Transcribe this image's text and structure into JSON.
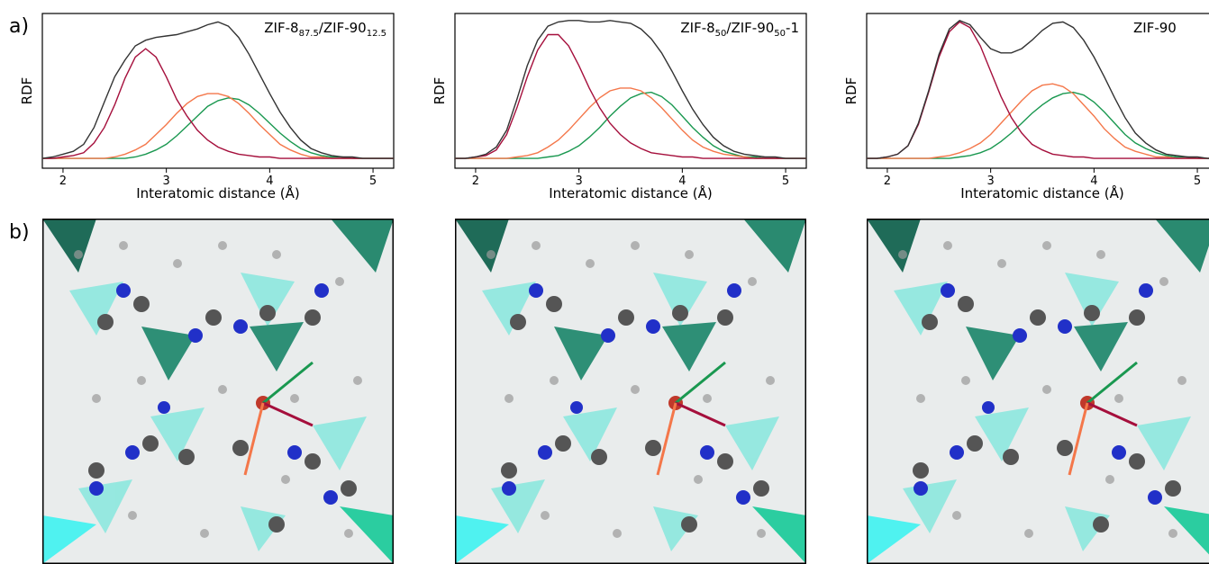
{
  "panel_labels": [
    "a)",
    "b)"
  ],
  "chart_data": [
    {
      "type": "line",
      "title": [
        "ZIF-8",
        "87.5",
        "/ZIF-90",
        "12.5"
      ],
      "x_label": "Interatomic distance (Å)",
      "y_label": "RDF",
      "xlim": [
        1.8,
        5.2
      ],
      "xticks": [
        2,
        3,
        4,
        5
      ],
      "ylim": [
        -0.07,
        1.03
      ],
      "x": [
        1.8,
        1.9,
        2.0,
        2.1,
        2.2,
        2.3,
        2.4,
        2.5,
        2.6,
        2.7,
        2.8,
        2.9,
        3.0,
        3.1,
        3.2,
        3.3,
        3.4,
        3.5,
        3.6,
        3.7,
        3.8,
        3.9,
        4.0,
        4.1,
        4.2,
        4.3,
        4.4,
        4.5,
        4.6,
        4.7,
        4.8,
        4.9,
        5.0,
        5.1,
        5.2
      ],
      "series": [
        {
          "color": "#333333",
          "values": [
            0,
            0.01,
            0.03,
            0.05,
            0.1,
            0.22,
            0.4,
            0.58,
            0.7,
            0.8,
            0.84,
            0.86,
            0.87,
            0.88,
            0.9,
            0.92,
            0.95,
            0.97,
            0.94,
            0.86,
            0.74,
            0.6,
            0.46,
            0.33,
            0.22,
            0.13,
            0.07,
            0.04,
            0.02,
            0.01,
            0.01,
            0,
            0,
            0,
            0
          ]
        },
        {
          "color": "#a50f3c",
          "values": [
            0,
            0,
            0.01,
            0.02,
            0.04,
            0.11,
            0.22,
            0.38,
            0.57,
            0.72,
            0.78,
            0.72,
            0.58,
            0.42,
            0.3,
            0.2,
            0.13,
            0.08,
            0.05,
            0.03,
            0.02,
            0.01,
            0.01,
            0,
            0,
            0,
            0,
            0,
            0,
            0,
            0,
            0,
            0,
            0,
            0
          ]
        },
        {
          "color": "#f4774a",
          "values": [
            0,
            0,
            0,
            0,
            0,
            0,
            0,
            0.01,
            0.03,
            0.06,
            0.1,
            0.17,
            0.24,
            0.32,
            0.39,
            0.44,
            0.46,
            0.46,
            0.44,
            0.39,
            0.32,
            0.24,
            0.17,
            0.1,
            0.06,
            0.03,
            0.01,
            0.01,
            0,
            0,
            0,
            0,
            0,
            0,
            0
          ]
        },
        {
          "color": "#1a9850",
          "values": [
            0,
            0,
            0,
            0,
            0,
            0,
            0,
            0,
            0,
            0.01,
            0.03,
            0.06,
            0.1,
            0.16,
            0.23,
            0.3,
            0.37,
            0.41,
            0.43,
            0.42,
            0.38,
            0.32,
            0.25,
            0.18,
            0.12,
            0.07,
            0.04,
            0.02,
            0.01,
            0.01,
            0,
            0,
            0,
            0,
            0
          ]
        }
      ]
    },
    {
      "type": "line",
      "title": [
        "ZIF-8",
        "50",
        "/ZIF-90",
        "50",
        "-1"
      ],
      "x_label": "Interatomic distance (Å)",
      "y_label": "RDF",
      "xlim": [
        1.8,
        5.2
      ],
      "xticks": [
        2,
        3,
        4,
        5
      ],
      "ylim": [
        -0.07,
        1.03
      ],
      "x": [
        1.8,
        1.9,
        2.0,
        2.1,
        2.2,
        2.3,
        2.4,
        2.5,
        2.6,
        2.7,
        2.8,
        2.9,
        3.0,
        3.1,
        3.2,
        3.3,
        3.4,
        3.5,
        3.6,
        3.7,
        3.8,
        3.9,
        4.0,
        4.1,
        4.2,
        4.3,
        4.4,
        4.5,
        4.6,
        4.7,
        4.8,
        4.9,
        5.0,
        5.1,
        5.2
      ],
      "series": [
        {
          "color": "#333333",
          "values": [
            0,
            0,
            0.01,
            0.03,
            0.08,
            0.2,
            0.42,
            0.66,
            0.84,
            0.94,
            0.97,
            0.98,
            0.98,
            0.97,
            0.97,
            0.98,
            0.97,
            0.96,
            0.92,
            0.85,
            0.75,
            0.62,
            0.48,
            0.35,
            0.24,
            0.15,
            0.09,
            0.05,
            0.03,
            0.02,
            0.01,
            0.01,
            0,
            0,
            0
          ]
        },
        {
          "color": "#a50f3c",
          "values": [
            0,
            0,
            0.01,
            0.02,
            0.06,
            0.17,
            0.36,
            0.58,
            0.77,
            0.88,
            0.88,
            0.8,
            0.66,
            0.5,
            0.36,
            0.25,
            0.17,
            0.11,
            0.07,
            0.04,
            0.03,
            0.02,
            0.01,
            0.01,
            0,
            0,
            0,
            0,
            0,
            0,
            0,
            0,
            0,
            0,
            0
          ]
        },
        {
          "color": "#f4774a",
          "values": [
            0,
            0,
            0,
            0,
            0,
            0,
            0.01,
            0.02,
            0.04,
            0.08,
            0.13,
            0.2,
            0.28,
            0.36,
            0.43,
            0.48,
            0.5,
            0.5,
            0.48,
            0.43,
            0.36,
            0.28,
            0.2,
            0.13,
            0.08,
            0.05,
            0.03,
            0.02,
            0.01,
            0,
            0,
            0,
            0,
            0,
            0
          ]
        },
        {
          "color": "#1a9850",
          "values": [
            0,
            0,
            0,
            0,
            0,
            0,
            0,
            0,
            0,
            0.01,
            0.02,
            0.05,
            0.09,
            0.15,
            0.22,
            0.3,
            0.37,
            0.43,
            0.46,
            0.47,
            0.44,
            0.38,
            0.3,
            0.22,
            0.15,
            0.09,
            0.05,
            0.03,
            0.01,
            0.01,
            0,
            0,
            0,
            0,
            0
          ]
        }
      ]
    },
    {
      "type": "line",
      "title": [
        "ZIF-90"
      ],
      "x_label": "Interatomic distance (Å)",
      "y_label": "RDF",
      "xlim": [
        1.8,
        5.2
      ],
      "xticks": [
        2,
        3,
        4,
        5
      ],
      "ylim": [
        -0.07,
        1.03
      ],
      "x": [
        1.8,
        1.9,
        2.0,
        2.1,
        2.2,
        2.3,
        2.4,
        2.5,
        2.6,
        2.7,
        2.8,
        2.9,
        3.0,
        3.1,
        3.2,
        3.3,
        3.4,
        3.5,
        3.6,
        3.7,
        3.8,
        3.9,
        4.0,
        4.1,
        4.2,
        4.3,
        4.4,
        4.5,
        4.6,
        4.7,
        4.8,
        4.9,
        5.0,
        5.1,
        5.2
      ],
      "series": [
        {
          "color": "#333333",
          "values": [
            0,
            0,
            0.01,
            0.03,
            0.09,
            0.25,
            0.48,
            0.74,
            0.92,
            0.98,
            0.95,
            0.86,
            0.78,
            0.75,
            0.75,
            0.78,
            0.84,
            0.91,
            0.96,
            0.97,
            0.93,
            0.84,
            0.72,
            0.58,
            0.43,
            0.29,
            0.18,
            0.11,
            0.06,
            0.03,
            0.02,
            0.01,
            0.01,
            0,
            0
          ]
        },
        {
          "color": "#a50f3c",
          "values": [
            0,
            0,
            0.01,
            0.03,
            0.09,
            0.24,
            0.47,
            0.72,
            0.9,
            0.97,
            0.93,
            0.8,
            0.62,
            0.44,
            0.29,
            0.18,
            0.1,
            0.06,
            0.03,
            0.02,
            0.01,
            0.01,
            0,
            0,
            0,
            0,
            0,
            0,
            0,
            0,
            0,
            0,
            0,
            0,
            0
          ]
        },
        {
          "color": "#f4774a",
          "values": [
            0,
            0,
            0,
            0,
            0,
            0,
            0,
            0.01,
            0.02,
            0.04,
            0.07,
            0.11,
            0.17,
            0.25,
            0.33,
            0.41,
            0.48,
            0.52,
            0.53,
            0.51,
            0.46,
            0.38,
            0.3,
            0.21,
            0.14,
            0.08,
            0.05,
            0.03,
            0.01,
            0.01,
            0,
            0,
            0,
            0,
            0
          ]
        },
        {
          "color": "#1a9850",
          "values": [
            0,
            0,
            0,
            0,
            0,
            0,
            0,
            0,
            0,
            0.01,
            0.02,
            0.04,
            0.07,
            0.12,
            0.18,
            0.25,
            0.32,
            0.38,
            0.43,
            0.46,
            0.47,
            0.45,
            0.4,
            0.33,
            0.25,
            0.17,
            0.11,
            0.07,
            0.04,
            0.02,
            0.01,
            0.01,
            0,
            0,
            0
          ]
        }
      ]
    }
  ]
}
